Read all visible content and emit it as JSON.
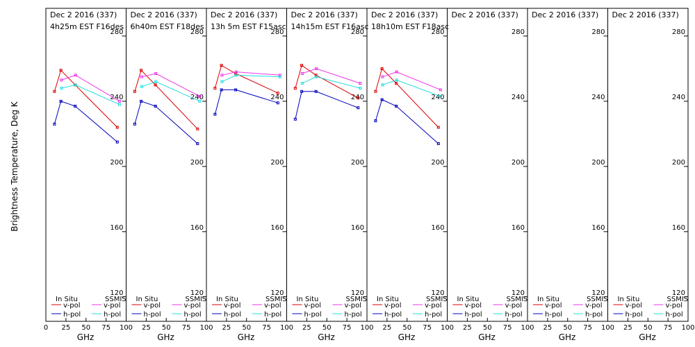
{
  "chart_data": {
    "type": "line",
    "ylabel": "Brightness Temperature, Deg K",
    "xlabel": "GHz",
    "xlim": [
      0,
      100
    ],
    "ylim": [
      105,
      297
    ],
    "xticks": [
      "0",
      "25",
      "50",
      "75",
      "100"
    ],
    "yticks": [
      120,
      160,
      200,
      240,
      280
    ],
    "legend": {
      "in_situ_header": "In Situ",
      "ssmis_header": "SSMIS",
      "vpol": "v-pol",
      "hpol": "h-pol"
    },
    "colors": {
      "insitu_v": "#dd0000",
      "insitu_h": "#0000bb",
      "ssmis_v": "#ee33ee",
      "ssmis_h": "#22dddd"
    },
    "panels": [
      {
        "title1": "Dec 2 2016 (337)",
        "title2": "4h25m  EST F16des",
        "series": {
          "insitu_v": {
            "x": [
              10.7,
              18.7,
              36.5,
              89
            ],
            "y": [
              246,
              259,
              250,
              224
            ]
          },
          "insitu_h": {
            "x": [
              10.7,
              18.7,
              36.5,
              89
            ],
            "y": [
              226,
              240,
              237,
              215
            ]
          },
          "ssmis_v": {
            "x": [
              19.35,
              37,
              91.65
            ],
            "y": [
              253,
              256,
              240
            ]
          },
          "ssmis_h": {
            "x": [
              19.35,
              37,
              91.65
            ],
            "y": [
              248,
              250,
              238
            ]
          }
        }
      },
      {
        "title1": "Dec 2 2016 (337)",
        "title2": "6h40m  EST F18des",
        "series": {
          "insitu_v": {
            "x": [
              10.7,
              18.7,
              36.5,
              89
            ],
            "y": [
              246,
              259,
              250,
              223
            ]
          },
          "insitu_h": {
            "x": [
              10.7,
              18.7,
              36.5,
              89
            ],
            "y": [
              226,
              240,
              237,
              214
            ]
          },
          "ssmis_v": {
            "x": [
              19.35,
              37,
              91.65
            ],
            "y": [
              255,
              257,
              243
            ]
          },
          "ssmis_h": {
            "x": [
              19.35,
              37,
              91.65
            ],
            "y": [
              249,
              252,
              240
            ]
          }
        }
      },
      {
        "title1": "Dec 2 2016 (337)",
        "title2": "13h 5m  EST F15asc",
        "series": {
          "insitu_v": {
            "x": [
              10.7,
              18.7,
              36.5,
              89
            ],
            "y": [
              248,
              262,
              257,
              245
            ]
          },
          "insitu_h": {
            "x": [
              10.7,
              18.7,
              36.5,
              89
            ],
            "y": [
              232,
              247,
              247,
              239
            ]
          },
          "ssmis_v": {
            "x": [
              19.35,
              37,
              91.65
            ],
            "y": [
              256,
              258,
              256
            ]
          },
          "ssmis_h": {
            "x": [
              19.35,
              37,
              91.65
            ],
            "y": [
              252,
              256,
              255
            ]
          }
        }
      },
      {
        "title1": "Dec 2 2016 (337)",
        "title2": "14h15m  EST F16asc",
        "series": {
          "insitu_v": {
            "x": [
              10.7,
              18.7,
              36.5,
              89
            ],
            "y": [
              248,
              262,
              256,
              242
            ]
          },
          "insitu_h": {
            "x": [
              10.7,
              18.7,
              36.5,
              89
            ],
            "y": [
              229,
              246,
              246,
              236
            ]
          },
          "ssmis_v": {
            "x": [
              19.35,
              37,
              91.65
            ],
            "y": [
              257,
              260,
              251
            ]
          },
          "ssmis_h": {
            "x": [
              19.35,
              37,
              91.65
            ],
            "y": [
              251,
              255,
              248
            ]
          }
        }
      },
      {
        "title1": "Dec 2 2016 (337)",
        "title2": "18h10m  EST F18asc",
        "series": {
          "insitu_v": {
            "x": [
              10.7,
              18.7,
              36.5,
              89
            ],
            "y": [
              246,
              260,
              251,
              224
            ]
          },
          "insitu_h": {
            "x": [
              10.7,
              18.7,
              36.5,
              89
            ],
            "y": [
              228,
              241,
              237,
              214
            ]
          },
          "ssmis_v": {
            "x": [
              19.35,
              37,
              91.65
            ],
            "y": [
              255,
              258,
              247
            ]
          },
          "ssmis_h": {
            "x": [
              19.35,
              37,
              91.65
            ],
            "y": [
              250,
              253,
              243
            ]
          }
        }
      },
      {
        "title1": "Dec 2 2016 (337)",
        "title2": "",
        "series": {}
      },
      {
        "title1": "Dec 2 2016 (337)",
        "title2": "",
        "series": {}
      },
      {
        "title1": "Dec 2 2016 (337)",
        "title2": "",
        "series": {}
      }
    ]
  }
}
